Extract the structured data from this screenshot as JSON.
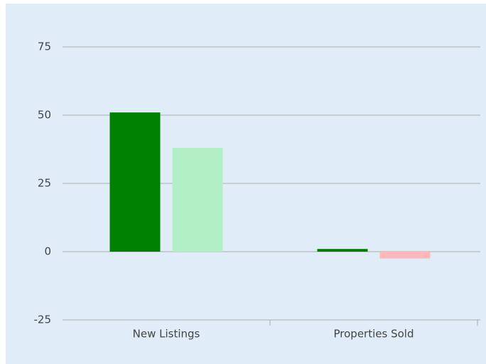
{
  "chart_data": {
    "type": "bar",
    "categories": [
      "New Listings",
      "Properties Sold"
    ],
    "series": [
      {
        "color": "#008000",
        "values": [
          51,
          1
        ]
      },
      {
        "colors": [
          "#b0f0c4",
          "#ffb8b8"
        ],
        "values": [
          38,
          -2.5
        ]
      }
    ],
    "ylim": [
      -25,
      75
    ],
    "yticks": [
      -25,
      0,
      25,
      50,
      75
    ],
    "grid": true
  }
}
